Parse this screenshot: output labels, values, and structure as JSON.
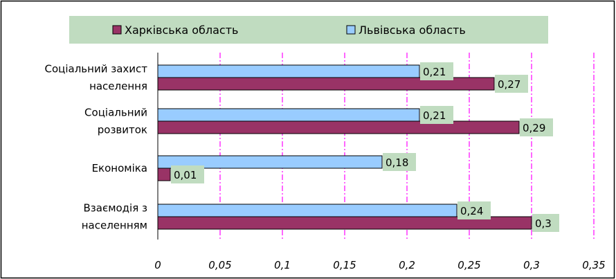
{
  "chart_data": {
    "type": "bar",
    "orientation": "horizontal",
    "categories": [
      [
        "Соціальний захист",
        "населення"
      ],
      [
        "Соціальний",
        "розвиток"
      ],
      [
        "Економіка"
      ],
      [
        "Взаємодія з",
        "населенням"
      ]
    ],
    "series": [
      {
        "name": "Харківська область",
        "values": [
          0.27,
          0.29,
          0.01,
          0.3
        ],
        "labels": [
          "0,27",
          "0,29",
          "0,01",
          "0,3"
        ],
        "color": "#993366"
      },
      {
        "name": "Львівська область",
        "values": [
          0.21,
          0.21,
          0.18,
          0.24
        ],
        "labels": [
          "0,21",
          "0,21",
          "0,18",
          "0,24"
        ],
        "color": "#99CCFF"
      }
    ],
    "xlim": [
      0,
      0.35
    ],
    "xticks": [
      0,
      0.05,
      0.1,
      0.15,
      0.2,
      0.25,
      0.3,
      0.35
    ],
    "xtick_labels": [
      "0",
      "0,05",
      "0,1",
      "0,15",
      "0,2",
      "0,25",
      "0,3",
      "0,35"
    ],
    "grid": "vertical dash-dot",
    "grid_color": "#FF00FF",
    "label_bg": "#C0DCC0",
    "legend_position": "top",
    "legend_bg": "#C0DCC0"
  }
}
